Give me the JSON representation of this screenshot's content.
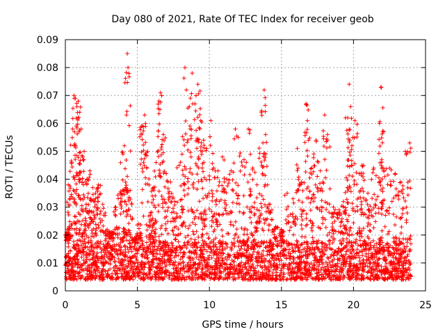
{
  "chart_data": {
    "type": "scatter",
    "title": "Day 080 of 2021, Rate Of TEC Index for receiver geob",
    "xlabel": "GPS time / hours",
    "ylabel": "ROTI / TECUs",
    "xlim": [
      0,
      25
    ],
    "ylim": [
      0,
      0.09
    ],
    "x_ticks": [
      0,
      5,
      10,
      15,
      20,
      25
    ],
    "y_ticks": [
      0,
      0.01,
      0.02,
      0.03,
      0.04,
      0.05,
      0.06,
      0.07,
      0.08,
      0.09
    ],
    "x_tick_labels": [
      "0",
      "5",
      "10",
      "15",
      "20",
      "25"
    ],
    "y_tick_labels": [
      "0",
      "0.01",
      "0.02",
      "0.03",
      "0.04",
      "0.05",
      "0.06",
      "0.07",
      "0.08",
      "0.09"
    ],
    "grid": true,
    "marker": "+",
    "marker_color": "#ff0000",
    "baseline_range": [
      0.004,
      0.018
    ],
    "points": [
      [
        0.0,
        0.02
      ],
      [
        0.1,
        0.021
      ],
      [
        0.2,
        0.038
      ],
      [
        0.3,
        0.033
      ],
      [
        0.5,
        0.058
      ],
      [
        0.6,
        0.07
      ],
      [
        0.7,
        0.069
      ],
      [
        0.8,
        0.066
      ],
      [
        0.9,
        0.068
      ],
      [
        1.0,
        0.064
      ],
      [
        1.1,
        0.058
      ],
      [
        1.2,
        0.048
      ],
      [
        1.3,
        0.05
      ],
      [
        1.5,
        0.04
      ],
      [
        1.7,
        0.043
      ],
      [
        1.9,
        0.037
      ],
      [
        2.1,
        0.035
      ],
      [
        2.3,
        0.038
      ],
      [
        2.6,
        0.031
      ],
      [
        2.9,
        0.022
      ],
      [
        3.2,
        0.021
      ],
      [
        3.5,
        0.03
      ],
      [
        3.8,
        0.035
      ],
      [
        4.0,
        0.049
      ],
      [
        4.1,
        0.052
      ],
      [
        4.2,
        0.037
      ],
      [
        4.3,
        0.085
      ],
      [
        4.35,
        0.08
      ],
      [
        4.5,
        0.036
      ],
      [
        4.8,
        0.019
      ],
      [
        5.1,
        0.024
      ],
      [
        5.3,
        0.059
      ],
      [
        5.5,
        0.063
      ],
      [
        5.7,
        0.05
      ],
      [
        5.9,
        0.028
      ],
      [
        6.1,
        0.037
      ],
      [
        6.3,
        0.046
      ],
      [
        6.5,
        0.068
      ],
      [
        6.6,
        0.071
      ],
      [
        6.8,
        0.056
      ],
      [
        7.0,
        0.042
      ],
      [
        7.3,
        0.039
      ],
      [
        7.6,
        0.032
      ],
      [
        7.9,
        0.045
      ],
      [
        8.1,
        0.049
      ],
      [
        8.3,
        0.08
      ],
      [
        8.4,
        0.072
      ],
      [
        8.6,
        0.066
      ],
      [
        8.8,
        0.078
      ],
      [
        9.0,
        0.067
      ],
      [
        9.2,
        0.074
      ],
      [
        9.4,
        0.061
      ],
      [
        9.6,
        0.054
      ],
      [
        9.8,
        0.051
      ],
      [
        10.1,
        0.061
      ],
      [
        10.3,
        0.044
      ],
      [
        10.6,
        0.043
      ],
      [
        10.9,
        0.048
      ],
      [
        11.2,
        0.04
      ],
      [
        11.5,
        0.043
      ],
      [
        11.8,
        0.058
      ],
      [
        12.0,
        0.055
      ],
      [
        12.4,
        0.047
      ],
      [
        12.7,
        0.058
      ],
      [
        13.0,
        0.044
      ],
      [
        13.3,
        0.038
      ],
      [
        13.6,
        0.064
      ],
      [
        13.8,
        0.072
      ],
      [
        13.9,
        0.056
      ],
      [
        14.2,
        0.031
      ],
      [
        14.6,
        0.023
      ],
      [
        15.0,
        0.022
      ],
      [
        15.4,
        0.035
      ],
      [
        15.8,
        0.033
      ],
      [
        16.1,
        0.051
      ],
      [
        16.4,
        0.039
      ],
      [
        16.7,
        0.067
      ],
      [
        16.8,
        0.061
      ],
      [
        17.1,
        0.044
      ],
      [
        17.4,
        0.054
      ],
      [
        17.7,
        0.043
      ],
      [
        18.0,
        0.063
      ],
      [
        18.2,
        0.056
      ],
      [
        18.6,
        0.03
      ],
      [
        19.0,
        0.029
      ],
      [
        19.3,
        0.032
      ],
      [
        19.6,
        0.062
      ],
      [
        19.7,
        0.074
      ],
      [
        19.8,
        0.066
      ],
      [
        20.1,
        0.061
      ],
      [
        20.4,
        0.042
      ],
      [
        20.7,
        0.045
      ],
      [
        21.0,
        0.035
      ],
      [
        21.4,
        0.044
      ],
      [
        21.8,
        0.06
      ],
      [
        21.9,
        0.073
      ],
      [
        22.1,
        0.057
      ],
      [
        22.5,
        0.044
      ],
      [
        22.9,
        0.042
      ],
      [
        23.3,
        0.039
      ],
      [
        23.6,
        0.05
      ],
      [
        23.9,
        0.053
      ]
    ]
  }
}
